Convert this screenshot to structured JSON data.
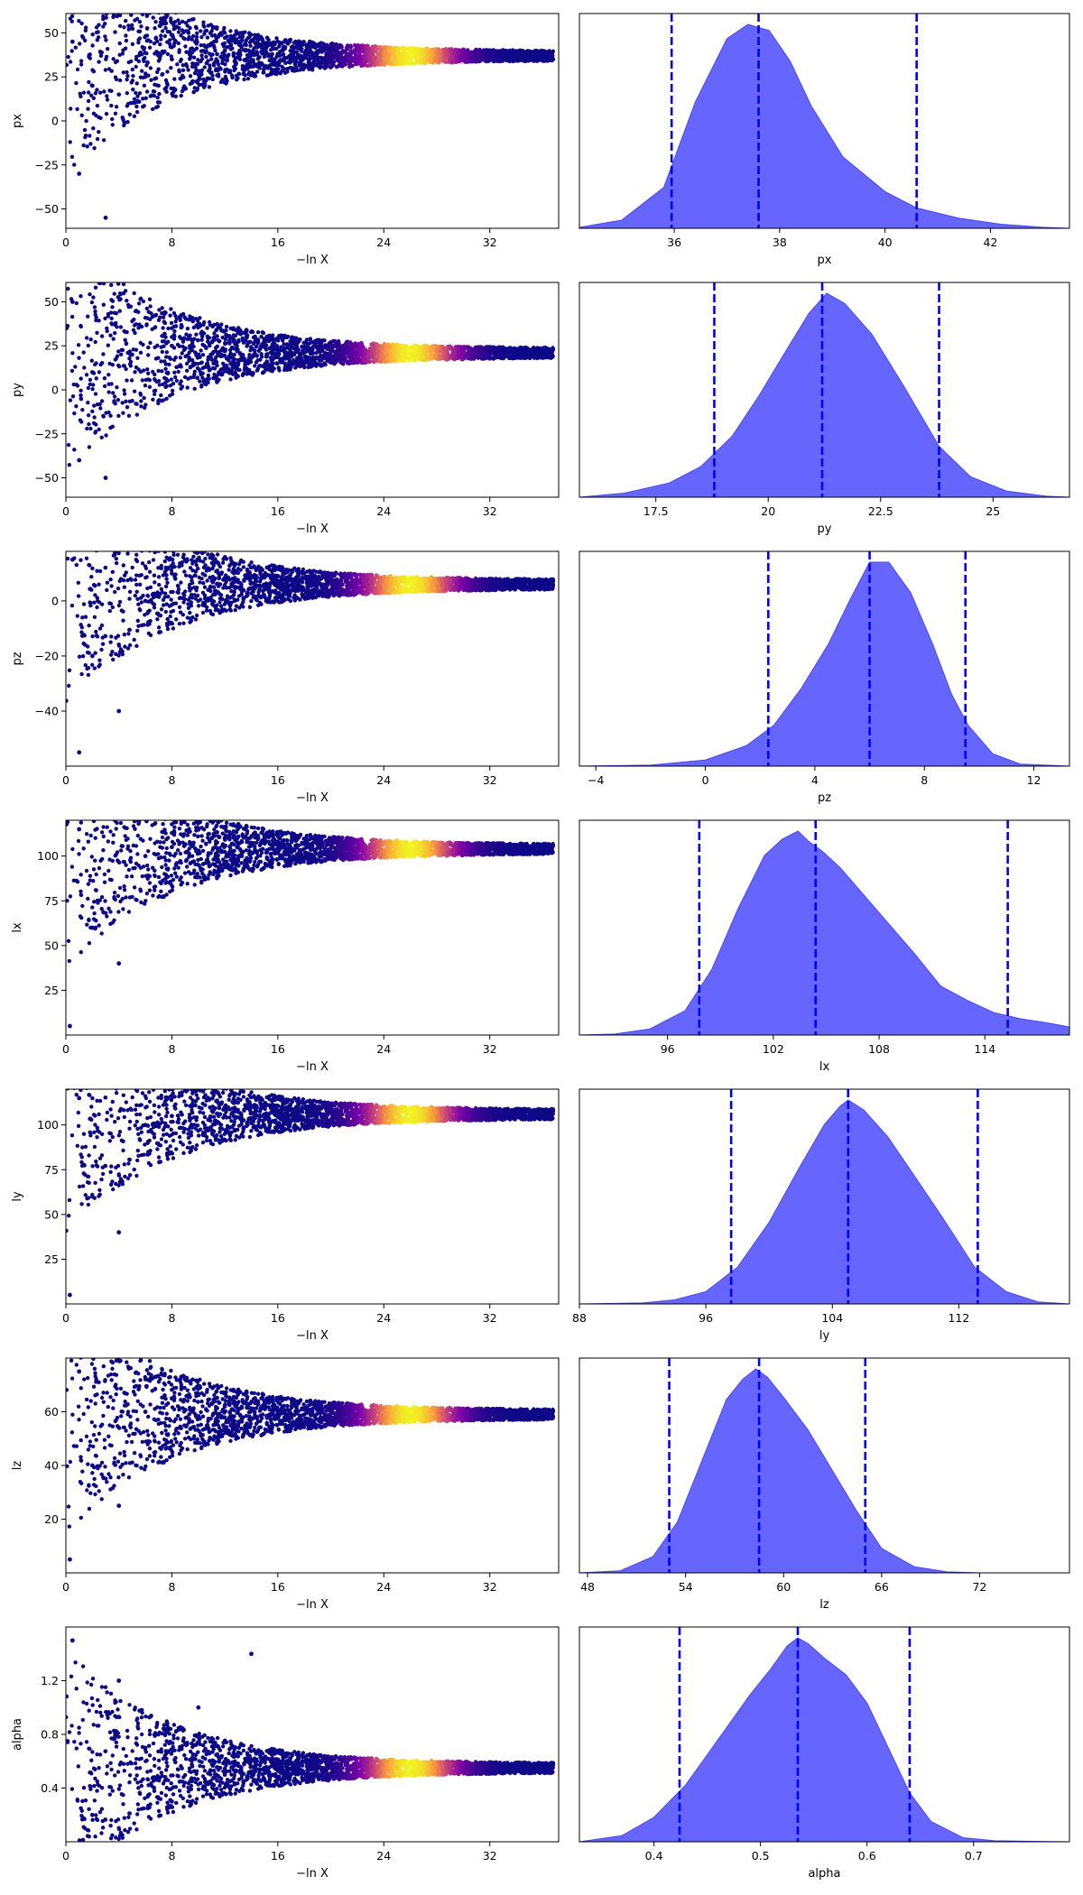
{
  "chart_data": [
    {
      "type": "scatter",
      "ylabel": "px",
      "xlabel": "−ln X",
      "xlim": [
        0,
        37.2
      ],
      "xticks": [
        0,
        8,
        16,
        24,
        32
      ],
      "ylim": [
        -61,
        61
      ],
      "yticks": [
        -50,
        -25,
        0,
        25,
        50
      ],
      "ytick_labels": [
        "−50",
        "−25",
        "0",
        "25",
        "50"
      ],
      "points": [
        [
          0.5,
          45
        ],
        [
          1.0,
          -30
        ],
        [
          2.0,
          20
        ],
        [
          3.0,
          -55
        ],
        [
          4.0,
          15
        ],
        [
          6.0,
          25
        ],
        [
          8.0,
          35
        ],
        [
          12.0,
          40
        ],
        [
          16.0,
          38
        ],
        [
          20.0,
          38
        ],
        [
          24.0,
          38
        ],
        [
          26.0,
          38
        ],
        [
          30.0,
          37
        ],
        [
          34.0,
          37
        ],
        [
          36.5,
          37
        ]
      ]
    },
    {
      "type": "area",
      "xlabel": "px",
      "xlim": [
        34.2,
        43.5
      ],
      "xticks": [
        36,
        38,
        40,
        42
      ],
      "quantile_lines": [
        35.95,
        37.6,
        40.6
      ],
      "x": [
        34.2,
        35.0,
        35.8,
        36.4,
        37.0,
        37.4,
        37.8,
        38.2,
        38.6,
        39.2,
        40.0,
        40.6,
        41.4,
        42.2,
        43.0,
        43.5
      ],
      "density": [
        0.005,
        0.04,
        0.2,
        0.62,
        0.93,
        1.0,
        0.97,
        0.82,
        0.6,
        0.35,
        0.18,
        0.1,
        0.05,
        0.02,
        0.005,
        0.0
      ]
    },
    {
      "type": "scatter",
      "ylabel": "py",
      "xlabel": "−ln X",
      "xlim": [
        0,
        37.2
      ],
      "xticks": [
        0,
        8,
        16,
        24,
        32
      ],
      "ylim": [
        -61,
        61
      ],
      "yticks": [
        -50,
        -25,
        0,
        25,
        50
      ],
      "ytick_labels": [
        "−50",
        "−25",
        "0",
        "25",
        "50"
      ],
      "points": [
        [
          0.5,
          50
        ],
        [
          1.0,
          -40
        ],
        [
          2.0,
          10
        ],
        [
          3.0,
          -50
        ],
        [
          5.0,
          20
        ],
        [
          8.0,
          25
        ],
        [
          12.0,
          22
        ],
        [
          16.0,
          22
        ],
        [
          20.0,
          22
        ],
        [
          24.0,
          22
        ],
        [
          26.0,
          22
        ],
        [
          30.0,
          21
        ],
        [
          34.0,
          21
        ],
        [
          36.5,
          21
        ]
      ]
    },
    {
      "type": "area",
      "xlabel": "py",
      "xlim": [
        15.8,
        26.7
      ],
      "xticks": [
        17.5,
        20.0,
        22.5,
        25.0
      ],
      "quantile_lines": [
        18.8,
        21.2,
        23.8
      ],
      "x": [
        15.8,
        16.8,
        17.8,
        18.5,
        19.2,
        19.8,
        20.4,
        20.9,
        21.3,
        21.7,
        22.3,
        23.0,
        23.8,
        24.5,
        25.3,
        26.2,
        26.7
      ],
      "density": [
        0.0,
        0.02,
        0.07,
        0.15,
        0.3,
        0.5,
        0.72,
        0.9,
        1.0,
        0.95,
        0.8,
        0.55,
        0.25,
        0.1,
        0.03,
        0.005,
        0.0
      ]
    },
    {
      "type": "scatter",
      "ylabel": "pz",
      "xlabel": "−ln X",
      "xlim": [
        0,
        37.2
      ],
      "xticks": [
        0,
        8,
        16,
        24,
        32
      ],
      "ylim": [
        -60,
        18
      ],
      "yticks": [
        -40,
        -20,
        0
      ],
      "ytick_labels": [
        "−40",
        "−20",
        "0"
      ],
      "points": [
        [
          0.5,
          15
        ],
        [
          1.0,
          -55
        ],
        [
          2.0,
          -20
        ],
        [
          4.0,
          -40
        ],
        [
          6.0,
          0
        ],
        [
          8.0,
          10
        ],
        [
          12.0,
          8
        ],
        [
          16.0,
          7
        ],
        [
          20.0,
          7
        ],
        [
          24.0,
          6
        ],
        [
          26.0,
          6
        ],
        [
          30.0,
          6
        ],
        [
          34.0,
          6
        ],
        [
          36.5,
          6
        ]
      ]
    },
    {
      "type": "area",
      "xlabel": "pz",
      "xlim": [
        -4.6,
        13.3
      ],
      "xticks": [
        -4,
        0,
        4,
        8,
        12
      ],
      "xtick_labels": [
        "−4",
        "0",
        "4",
        "8",
        "12"
      ],
      "quantile_lines": [
        2.3,
        6.0,
        9.5
      ],
      "x": [
        -4.6,
        -2.0,
        0.0,
        1.5,
        2.5,
        3.5,
        4.5,
        5.3,
        6.0,
        6.7,
        7.5,
        8.3,
        9.0,
        9.6,
        10.5,
        11.5,
        13.3
      ],
      "density": [
        0.0,
        0.005,
        0.03,
        0.1,
        0.2,
        0.38,
        0.6,
        0.82,
        1.0,
        1.0,
        0.85,
        0.6,
        0.35,
        0.2,
        0.06,
        0.01,
        0.0
      ]
    },
    {
      "type": "scatter",
      "ylabel": "lx",
      "xlabel": "−ln X",
      "xlim": [
        0,
        37.2
      ],
      "xticks": [
        0,
        8,
        16,
        24,
        32
      ],
      "ylim": [
        0,
        120
      ],
      "yticks": [
        25,
        50,
        75,
        100
      ],
      "ytick_labels": [
        "25",
        "50",
        "75",
        "100"
      ],
      "points": [
        [
          0.3,
          5
        ],
        [
          1.0,
          115
        ],
        [
          2.0,
          60
        ],
        [
          4.0,
          40
        ],
        [
          6.0,
          100
        ],
        [
          8.0,
          105
        ],
        [
          12.0,
          110
        ],
        [
          16.0,
          108
        ],
        [
          20.0,
          108
        ],
        [
          24.0,
          107
        ],
        [
          26.0,
          106
        ],
        [
          30.0,
          105
        ],
        [
          34.0,
          104
        ],
        [
          36.5,
          104
        ]
      ]
    },
    {
      "type": "area",
      "xlabel": "lx",
      "xlim": [
        91.0,
        118.8
      ],
      "xticks": [
        96,
        102,
        108,
        114
      ],
      "quantile_lines": [
        97.8,
        104.4,
        115.3
      ],
      "x": [
        91.0,
        93.0,
        95.0,
        97.0,
        98.5,
        100.0,
        101.5,
        102.5,
        103.4,
        104.0,
        104.8,
        105.8,
        107.0,
        108.5,
        110.0,
        111.5,
        113.0,
        114.5,
        116.0,
        117.5,
        118.8
      ],
      "density": [
        0.0,
        0.005,
        0.03,
        0.12,
        0.32,
        0.62,
        0.88,
        0.96,
        1.0,
        0.95,
        0.9,
        0.82,
        0.7,
        0.55,
        0.4,
        0.24,
        0.17,
        0.11,
        0.08,
        0.06,
        0.04
      ]
    },
    {
      "type": "scatter",
      "ylabel": "ly",
      "xlabel": "−ln X",
      "xlim": [
        0,
        37.2
      ],
      "xticks": [
        0,
        8,
        16,
        24,
        32
      ],
      "ylim": [
        0,
        120
      ],
      "yticks": [
        25,
        50,
        75,
        100
      ],
      "ytick_labels": [
        "25",
        "50",
        "75",
        "100"
      ],
      "points": [
        [
          0.3,
          5
        ],
        [
          1.0,
          115
        ],
        [
          2.0,
          60
        ],
        [
          4.0,
          40
        ],
        [
          6.0,
          100
        ],
        [
          8.0,
          105
        ],
        [
          12.0,
          110
        ],
        [
          16.0,
          108
        ],
        [
          20.0,
          108
        ],
        [
          24.0,
          107
        ],
        [
          26.0,
          107
        ],
        [
          30.0,
          106
        ],
        [
          34.0,
          106
        ],
        [
          36.5,
          106
        ]
      ]
    },
    {
      "type": "area",
      "xlabel": "ly",
      "xlim": [
        88.0,
        119.0
      ],
      "xticks": [
        88,
        96,
        104,
        112
      ],
      "quantile_lines": [
        97.6,
        105.0,
        113.2
      ],
      "x": [
        88.0,
        92.0,
        94.0,
        96.0,
        98.0,
        100.0,
        102.0,
        103.5,
        104.5,
        105.0,
        106.0,
        107.5,
        109.0,
        111.0,
        113.0,
        115.0,
        117.0,
        119.0
      ],
      "density": [
        0.0,
        0.005,
        0.02,
        0.06,
        0.18,
        0.4,
        0.68,
        0.88,
        0.97,
        1.0,
        0.95,
        0.82,
        0.65,
        0.42,
        0.18,
        0.06,
        0.01,
        0.0
      ]
    },
    {
      "type": "scatter",
      "ylabel": "lz",
      "xlabel": "−ln X",
      "xlim": [
        0,
        37.2
      ],
      "xticks": [
        0,
        8,
        16,
        24,
        32
      ],
      "ylim": [
        0,
        80
      ],
      "yticks": [
        20,
        40,
        60
      ],
      "ytick_labels": [
        "20",
        "40",
        "60"
      ],
      "points": [
        [
          0.3,
          5
        ],
        [
          1.0,
          75
        ],
        [
          2.0,
          40
        ],
        [
          4.0,
          25
        ],
        [
          6.0,
          60
        ],
        [
          8.0,
          65
        ],
        [
          12.0,
          62
        ],
        [
          16.0,
          60
        ],
        [
          20.0,
          60
        ],
        [
          24.0,
          60
        ],
        [
          26.0,
          60
        ],
        [
          30.0,
          59
        ],
        [
          34.0,
          59
        ],
        [
          36.5,
          59
        ]
      ]
    },
    {
      "type": "area",
      "xlabel": "lz",
      "xlim": [
        47.5,
        77.5
      ],
      "xticks": [
        48,
        54,
        60,
        66,
        72
      ],
      "quantile_lines": [
        53.0,
        58.5,
        65.0
      ],
      "x": [
        47.5,
        50.0,
        52.0,
        53.5,
        55.0,
        56.5,
        57.5,
        58.3,
        59.0,
        60.0,
        61.5,
        63.0,
        64.5,
        66.0,
        68.0,
        70.0,
        72.0,
        77.5
      ],
      "density": [
        0.0,
        0.01,
        0.08,
        0.25,
        0.55,
        0.85,
        0.95,
        1.0,
        0.96,
        0.86,
        0.7,
        0.5,
        0.3,
        0.12,
        0.03,
        0.005,
        0.0,
        0.0
      ]
    },
    {
      "type": "scatter",
      "ylabel": "alpha",
      "xlabel": "−ln X",
      "xlim": [
        0,
        37.2
      ],
      "xticks": [
        0,
        8,
        16,
        24,
        32
      ],
      "ylim": [
        0.0,
        1.6
      ],
      "yticks": [
        0.4,
        0.8,
        1.2
      ],
      "ytick_labels": [
        "0.4",
        "0.8",
        "1.2"
      ],
      "points": [
        [
          0.5,
          1.5
        ],
        [
          2.0,
          0.2
        ],
        [
          4.0,
          1.2
        ],
        [
          6.0,
          0.7
        ],
        [
          8.0,
          0.3
        ],
        [
          10.0,
          1.0
        ],
        [
          12.0,
          0.5
        ],
        [
          14.0,
          1.4
        ],
        [
          16.0,
          0.6
        ],
        [
          20.0,
          0.55
        ],
        [
          24.0,
          0.55
        ],
        [
          26.0,
          0.55
        ],
        [
          30.0,
          0.55
        ],
        [
          34.0,
          0.55
        ],
        [
          36.5,
          0.55
        ]
      ]
    },
    {
      "type": "area",
      "xlabel": "alpha",
      "xlim": [
        0.33,
        0.79
      ],
      "xticks": [
        0.4,
        0.5,
        0.6,
        0.7
      ],
      "quantile_lines": [
        0.424,
        0.535,
        0.64
      ],
      "x": [
        0.33,
        0.37,
        0.4,
        0.43,
        0.46,
        0.49,
        0.51,
        0.525,
        0.535,
        0.545,
        0.56,
        0.58,
        0.6,
        0.62,
        0.64,
        0.66,
        0.69,
        0.72,
        0.79
      ],
      "density": [
        0.0,
        0.03,
        0.12,
        0.28,
        0.5,
        0.72,
        0.85,
        0.96,
        1.0,
        0.97,
        0.9,
        0.82,
        0.68,
        0.46,
        0.24,
        0.1,
        0.02,
        0.005,
        0.0
      ]
    }
  ],
  "colors": {
    "axes": "#000000",
    "fill": "#6666ff",
    "line": "#0000ff",
    "dots_low": "#0d0887"
  }
}
